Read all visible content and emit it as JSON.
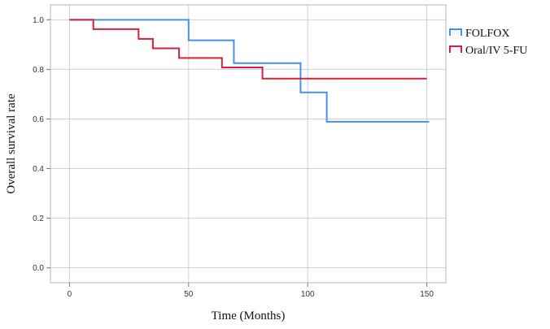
{
  "chart_data": {
    "type": "line",
    "step": true,
    "title": "",
    "xlabel": "Time (Months)",
    "ylabel": "Overall survival rate",
    "xlim": [
      -8,
      158
    ],
    "ylim": [
      -0.06,
      1.06
    ],
    "xticks": [
      0,
      50,
      100,
      150
    ],
    "yticks": [
      0.0,
      0.2,
      0.4,
      0.6,
      0.8,
      1.0
    ],
    "ytick_labels": [
      "0.0",
      "0.2",
      "0.4",
      "0.6",
      "0.8",
      "1.0"
    ],
    "grid": true,
    "legend_position": "top-right",
    "series": [
      {
        "name": "FOLFOX",
        "color": "#4a90e2",
        "x": [
          0,
          50,
          69,
          97,
          108,
          151
        ],
        "y": [
          1.0,
          0.917,
          0.825,
          0.707,
          0.589,
          0.589
        ]
      },
      {
        "name": "Oral/IV 5-FU",
        "color": "#d0223c",
        "x": [
          0,
          10,
          29,
          35,
          46,
          64,
          81,
          150
        ],
        "y": [
          1.0,
          0.962,
          0.923,
          0.885,
          0.846,
          0.808,
          0.763,
          0.763
        ]
      }
    ]
  }
}
